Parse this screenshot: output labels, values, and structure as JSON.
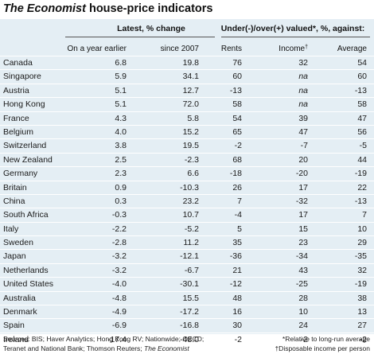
{
  "title": {
    "publication": "The Economist",
    "rest": " house-price indicators"
  },
  "headers": {
    "group_latest": "Latest, % change",
    "group_valued": "Under(-)/over(+) valued*, %, against:",
    "col_year": "On a year earlier",
    "col_since": "since 2007",
    "col_rents": "Rents",
    "col_income": "Income",
    "col_income_mark": "†",
    "col_average": "Average"
  },
  "rows": [
    {
      "country": "Canada",
      "year": "6.8",
      "since": "19.8",
      "rents": "76",
      "income": "32",
      "average": "54"
    },
    {
      "country": "Singapore",
      "year": "5.9",
      "since": "34.1",
      "rents": "60",
      "income": "na",
      "average": "60"
    },
    {
      "country": "Austria",
      "year": "5.1",
      "since": "12.7",
      "rents": "-13",
      "income": "na",
      "average": "-13"
    },
    {
      "country": "Hong Kong",
      "year": "5.1",
      "since": "72.0",
      "rents": "58",
      "income": "na",
      "average": "58"
    },
    {
      "country": "France",
      "year": "4.3",
      "since": "5.8",
      "rents": "54",
      "income": "39",
      "average": "47"
    },
    {
      "country": "Belgium",
      "year": "4.0",
      "since": "15.2",
      "rents": "65",
      "income": "47",
      "average": "56"
    },
    {
      "country": "Switzerland",
      "year": "3.8",
      "since": "19.5",
      "rents": "-2",
      "income": "-7",
      "average": "-5"
    },
    {
      "country": "New Zealand",
      "year": "2.5",
      "since": "-2.3",
      "rents": "68",
      "income": "20",
      "average": "44"
    },
    {
      "country": "Germany",
      "year": "2.3",
      "since": "6.6",
      "rents": "-18",
      "income": "-20",
      "average": "-19"
    },
    {
      "country": "Britain",
      "year": "0.9",
      "since": "-10.3",
      "rents": "26",
      "income": "17",
      "average": "22"
    },
    {
      "country": "China",
      "year": "0.3",
      "since": "23.2",
      "rents": "7",
      "income": "-32",
      "average": "-13"
    },
    {
      "country": "South Africa",
      "year": "-0.3",
      "since": "10.7",
      "rents": "-4",
      "income": "17",
      "average": "7"
    },
    {
      "country": "Italy",
      "year": "-2.2",
      "since": "-5.2",
      "rents": "5",
      "income": "15",
      "average": "10"
    },
    {
      "country": "Sweden",
      "year": "-2.8",
      "since": "11.2",
      "rents": "35",
      "income": "23",
      "average": "29"
    },
    {
      "country": "Japan",
      "year": "-3.2",
      "since": "-12.1",
      "rents": "-36",
      "income": "-34",
      "average": "-35"
    },
    {
      "country": "Netherlands",
      "year": "-3.2",
      "since": "-6.7",
      "rents": "21",
      "income": "43",
      "average": "32"
    },
    {
      "country": "United States",
      "year": "-4.0",
      "since": "-30.1",
      "rents": "-12",
      "income": "-25",
      "average": "-19"
    },
    {
      "country": "Australia",
      "year": "-4.8",
      "since": "15.5",
      "rents": "48",
      "income": "28",
      "average": "38"
    },
    {
      "country": "Denmark",
      "year": "-4.9",
      "since": "-17.2",
      "rents": "16",
      "income": "10",
      "average": "13"
    },
    {
      "country": "Spain",
      "year": "-6.9",
      "since": "-16.8",
      "rents": "30",
      "income": "24",
      "average": "27"
    },
    {
      "country": "Ireland",
      "year": "-17.4",
      "since": "-48.0",
      "rents": "-2",
      "income": "-2",
      "average": "-2"
    }
  ],
  "footer": {
    "sources_line1": "Sources: BIS; Haver Analytics; Hong Kong RV; Nationwide; OECD;",
    "sources_line2_prefix": "Teranet and National Bank; Thomson Reuters; ",
    "sources_line2_pub": "The Economist",
    "note1": "*Relative to long-run average",
    "note2": "†Disposable income per person"
  },
  "colors": {
    "panel_bg": "#e4eef4",
    "row_divider": "#ffffff",
    "rule": "#555555"
  }
}
